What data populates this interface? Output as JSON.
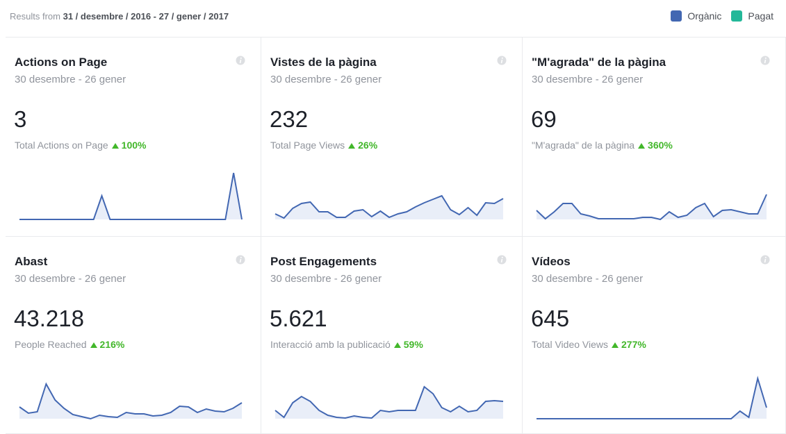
{
  "header": {
    "prefix": "Results from",
    "range": "31 / desembre / 2016 - 27 / gener / 2017"
  },
  "legend": [
    {
      "label": "Orgànic",
      "color": "#4267b2"
    },
    {
      "label": "Pagat",
      "color": "#23b899"
    }
  ],
  "cards": [
    {
      "title": "Actions on Page",
      "period": "30 desembre - 26 gener",
      "value": "3",
      "label": "Total Actions on Page",
      "change": "100%",
      "trend": [
        0,
        0,
        0,
        0,
        0,
        0,
        0,
        0,
        0,
        0,
        34,
        0,
        0,
        0,
        0,
        0,
        0,
        0,
        0,
        0,
        0,
        0,
        0,
        0,
        0,
        0,
        67,
        0
      ]
    },
    {
      "title": "Vistes de la pàgina",
      "period": "30 desembre - 26 gener",
      "value": "232",
      "label": "Total Page Views",
      "change": "26%",
      "trend": [
        8,
        2,
        16,
        23,
        25,
        11,
        11,
        3,
        3,
        12,
        14,
        4,
        12,
        3,
        8,
        11,
        18,
        24,
        29,
        34,
        14,
        7,
        17,
        6,
        24,
        23,
        30
      ]
    },
    {
      "title": "\"M'agrada\" de la pàgina",
      "period": "30 desembre - 26 gener",
      "value": "69",
      "label": "\"M'agrada\" de la pàgina",
      "change": "360%",
      "trend": [
        13,
        1,
        11,
        23,
        23,
        8,
        5,
        1,
        1,
        1,
        1,
        1,
        3,
        3,
        0,
        11,
        3,
        6,
        17,
        23,
        4,
        13,
        14,
        11,
        8,
        8,
        36
      ]
    },
    {
      "title": "Abast",
      "period": "30 desembre - 26 gener",
      "value": "43.218",
      "label": "People Reached",
      "change": "216%",
      "trend": [
        17,
        8,
        10,
        50,
        27,
        15,
        6,
        3,
        0,
        5,
        3,
        2,
        9,
        7,
        7,
        4,
        5,
        9,
        18,
        17,
        9,
        14,
        11,
        10,
        15,
        23
      ]
    },
    {
      "title": "Post Engagements",
      "period": "30 desembre - 26 gener",
      "value": "5.621",
      "label": "Interacció amb la publicació",
      "change": "59%",
      "trend": [
        12,
        2,
        23,
        32,
        25,
        12,
        5,
        2,
        1,
        4,
        2,
        1,
        12,
        10,
        12,
        12,
        12,
        46,
        36,
        16,
        10,
        18,
        10,
        12,
        25,
        26,
        25
      ]
    },
    {
      "title": "Vídeos",
      "period": "30 desembre - 26 gener",
      "value": "645",
      "label": "Total Video Views",
      "change": "277%",
      "trend": [
        0,
        0,
        0,
        0,
        0,
        0,
        0,
        0,
        0,
        0,
        0,
        0,
        0,
        0,
        0,
        0,
        0,
        0,
        0,
        0,
        0,
        0,
        0,
        11,
        2,
        58,
        16
      ]
    }
  ]
}
